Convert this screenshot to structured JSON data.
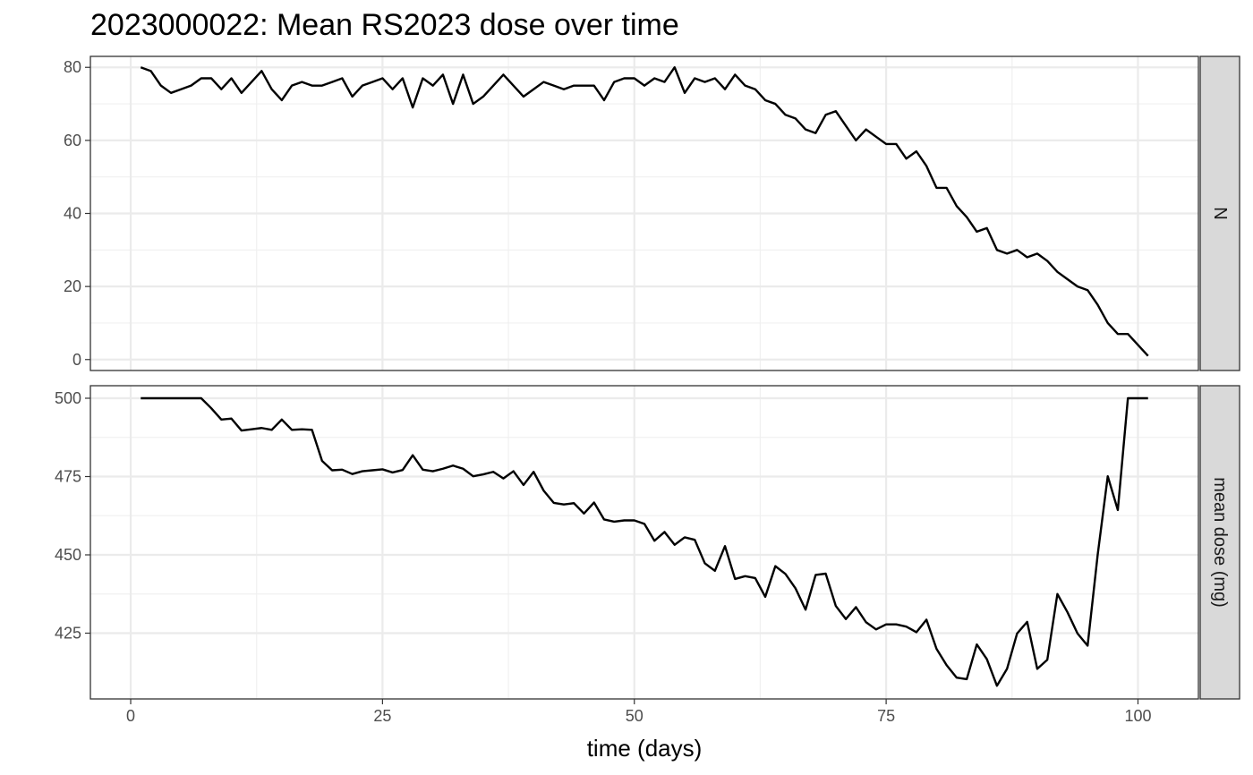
{
  "chart_data": {
    "type": "line",
    "title": "2023000022: Mean RS2023 dose over time",
    "xlabel": "time (days)",
    "xlim": [
      -4,
      106
    ],
    "x_ticks": [
      0,
      25,
      50,
      75,
      100
    ],
    "x_tick_labels": [
      "0",
      "25",
      "50",
      "75",
      "100"
    ],
    "grid": true,
    "theme": "black-and-white with grey facet strips",
    "line_color": "#000000",
    "x": [
      1,
      2,
      3,
      4,
      5,
      6,
      7,
      8,
      9,
      10,
      11,
      12,
      13,
      14,
      15,
      16,
      17,
      18,
      19,
      20,
      21,
      22,
      23,
      24,
      25,
      26,
      27,
      28,
      29,
      30,
      31,
      32,
      33,
      34,
      35,
      36,
      37,
      38,
      39,
      40,
      41,
      42,
      43,
      44,
      45,
      46,
      47,
      48,
      49,
      50,
      51,
      52,
      53,
      54,
      55,
      56,
      57,
      58,
      59,
      60,
      61,
      62,
      63,
      64,
      65,
      66,
      67,
      68,
      69,
      70,
      71,
      72,
      73,
      74,
      75,
      76,
      77,
      78,
      79,
      80,
      81,
      82,
      83,
      84,
      85,
      86,
      87,
      88,
      89,
      90,
      91,
      92,
      93,
      94,
      95,
      96,
      97,
      98,
      99,
      100,
      101
    ],
    "panels": [
      {
        "strip_label": "N",
        "ylim": [
          -3,
          83
        ],
        "y_ticks": [
          0,
          20,
          40,
          60,
          80
        ],
        "y_tick_labels": [
          "0",
          "20",
          "40",
          "60",
          "80"
        ],
        "values": [
          80,
          79,
          75,
          73,
          74,
          75,
          77,
          77,
          74,
          77,
          73,
          76,
          79,
          74,
          71,
          75,
          76,
          75,
          75,
          76,
          77,
          72,
          75,
          76,
          77,
          74,
          77,
          69,
          77,
          75,
          78,
          70,
          78,
          70,
          72,
          75,
          78,
          75,
          72,
          74,
          76,
          75,
          74,
          75,
          75,
          75,
          71,
          76,
          77,
          77,
          75,
          77,
          76,
          80,
          73,
          77,
          76,
          77,
          74,
          78,
          75,
          74,
          71,
          70,
          67,
          66,
          63,
          62,
          67,
          68,
          64,
          60,
          63,
          61,
          59,
          59,
          55,
          57,
          53,
          47,
          47,
          42,
          39,
          35,
          36,
          30,
          29,
          30,
          28,
          29,
          27,
          24,
          22,
          20,
          19,
          15,
          10,
          7,
          7,
          4,
          1
        ]
      },
      {
        "strip_label": "mean dose (mg)",
        "ylim": [
          404,
          504
        ],
        "y_ticks": [
          425,
          450,
          475,
          500
        ],
        "y_tick_labels": [
          "425",
          "450",
          "475",
          "500"
        ],
        "values": [
          500,
          500,
          500,
          500,
          500,
          500,
          500,
          496.8,
          493.2,
          493.5,
          489.7,
          490.1,
          490.5,
          489.9,
          493.2,
          489.9,
          490.1,
          489.9,
          480.0,
          477.0,
          477.2,
          475.8,
          476.7,
          477.0,
          477.3,
          476.3,
          477.1,
          481.8,
          477.2,
          476.7,
          477.5,
          478.5,
          477.5,
          475.1,
          475.7,
          476.5,
          474.4,
          476.7,
          472.3,
          476.5,
          470.5,
          466.6,
          466.1,
          466.5,
          463.2,
          466.7,
          461.3,
          460.6,
          461.0,
          461.0,
          459.9,
          454.5,
          457.3,
          453.2,
          455.6,
          454.8,
          447.3,
          444.9,
          452.8,
          442.3,
          443.2,
          442.6,
          436.6,
          446.4,
          443.9,
          439.3,
          432.5,
          443.6,
          444.0,
          433.7,
          429.5,
          433.3,
          428.5,
          426.2,
          427.8,
          427.8,
          427.1,
          425.3,
          429.3,
          420.0,
          414.8,
          410.8,
          410.3,
          421.4,
          416.7,
          408.2,
          413.6,
          424.9,
          428.6,
          413.6,
          416.5,
          437.5,
          431.7,
          424.9,
          421.0,
          450.0,
          475.1,
          464.3,
          500,
          500,
          500
        ]
      }
    ]
  }
}
